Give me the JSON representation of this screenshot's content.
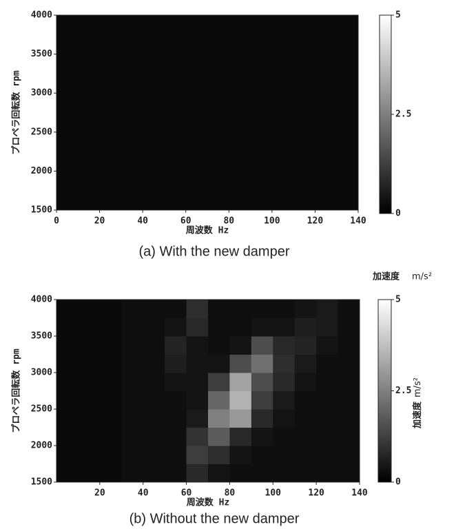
{
  "chart_data": [
    {
      "type": "heatmap",
      "xlabel": "周波数 Hz",
      "ylabel": "プロペラ回転数 rpm",
      "caption": "(a) With the new damper",
      "xlim": [
        0,
        140
      ],
      "xticks": [
        0,
        20,
        40,
        60,
        80,
        100,
        120,
        140
      ],
      "ylim": [
        1500,
        4000
      ],
      "yticks": [
        1500,
        2000,
        2500,
        3000,
        3500,
        4000
      ],
      "x_bins": [
        0,
        10,
        20,
        30,
        40,
        50,
        60,
        70,
        80,
        90,
        100,
        110,
        120,
        130,
        140
      ],
      "y_bins": [
        1500,
        1750,
        2000,
        2250,
        2500,
        2750,
        3000,
        3250,
        3500,
        3750,
        4000
      ],
      "z": [
        [
          0.2,
          0.2,
          0.2,
          0.2,
          0.2,
          0.2,
          0.2,
          0.2,
          0.2,
          0.2,
          0.2,
          0.2,
          0.2,
          0.2
        ],
        [
          0.2,
          0.2,
          0.2,
          0.2,
          0.2,
          0.2,
          0.2,
          0.2,
          0.2,
          0.2,
          0.2,
          0.2,
          0.2,
          0.2
        ],
        [
          0.2,
          0.2,
          0.2,
          0.2,
          0.2,
          0.2,
          0.2,
          0.2,
          0.2,
          0.2,
          0.2,
          0.2,
          0.2,
          0.2
        ],
        [
          0.2,
          0.2,
          0.2,
          0.2,
          0.2,
          0.2,
          0.2,
          0.2,
          0.2,
          0.2,
          0.2,
          0.2,
          0.2,
          0.2
        ],
        [
          0.2,
          0.2,
          0.2,
          0.2,
          0.2,
          0.2,
          0.2,
          0.2,
          0.2,
          0.2,
          0.2,
          0.2,
          0.2,
          0.2
        ],
        [
          0.2,
          0.2,
          0.2,
          0.2,
          0.2,
          0.2,
          0.2,
          0.2,
          0.2,
          0.2,
          0.2,
          0.2,
          0.2,
          0.2
        ],
        [
          0.2,
          0.2,
          0.2,
          0.2,
          0.2,
          0.2,
          0.2,
          0.2,
          0.2,
          0.2,
          0.2,
          0.2,
          0.2,
          0.2
        ],
        [
          0.2,
          0.2,
          0.2,
          0.2,
          0.2,
          0.2,
          0.2,
          0.2,
          0.2,
          0.2,
          0.2,
          0.2,
          0.2,
          0.2
        ],
        [
          0.2,
          0.2,
          0.2,
          0.2,
          0.2,
          0.2,
          0.2,
          0.2,
          0.2,
          0.2,
          0.2,
          0.2,
          0.2,
          0.2
        ],
        [
          0.2,
          0.2,
          0.2,
          0.2,
          0.2,
          0.2,
          0.2,
          0.2,
          0.2,
          0.2,
          0.2,
          0.2,
          0.2,
          0.2
        ]
      ],
      "colormap": [
        "#000000",
        "#ffffff"
      ],
      "zlim": [
        0,
        5
      ],
      "zticks": [
        0,
        2.5,
        5
      ]
    },
    {
      "type": "heatmap",
      "xlabel": "周波数 Hz",
      "ylabel": "プロペラ回転数 rpm",
      "caption": "(b) Without the new damper",
      "colorbar_title": "加速度",
      "colorbar_unit": "m/s²",
      "xlim": [
        0,
        140
      ],
      "xticks": [
        20,
        40,
        60,
        80,
        100,
        120,
        140
      ],
      "ylim": [
        1500,
        4000
      ],
      "yticks": [
        1500,
        2000,
        2500,
        3000,
        3500,
        4000
      ],
      "x_bins": [
        0,
        10,
        20,
        30,
        40,
        50,
        60,
        70,
        80,
        90,
        100,
        110,
        120,
        130,
        140
      ],
      "y_bins": [
        1500,
        1750,
        2000,
        2250,
        2500,
        2750,
        3000,
        3250,
        3500,
        3750,
        4000
      ],
      "z": [
        [
          0.2,
          0.2,
          0.2,
          0.3,
          0.3,
          0.3,
          0.8,
          0.4,
          0.3,
          0.3,
          0.3,
          0.3,
          0.3,
          0.3
        ],
        [
          0.2,
          0.2,
          0.2,
          0.3,
          0.3,
          0.3,
          1.2,
          0.9,
          0.4,
          0.3,
          0.3,
          0.3,
          0.3,
          0.3
        ],
        [
          0.2,
          0.2,
          0.2,
          0.3,
          0.3,
          0.3,
          1.0,
          1.8,
          0.8,
          0.4,
          0.3,
          0.3,
          0.3,
          0.3
        ],
        [
          0.2,
          0.2,
          0.2,
          0.3,
          0.3,
          0.3,
          0.5,
          2.5,
          3.0,
          0.8,
          0.4,
          0.3,
          0.3,
          0.3
        ],
        [
          0.2,
          0.2,
          0.2,
          0.3,
          0.3,
          0.3,
          0.4,
          2.0,
          3.5,
          1.2,
          0.5,
          0.3,
          0.3,
          0.3
        ],
        [
          0.2,
          0.2,
          0.2,
          0.3,
          0.3,
          0.4,
          0.4,
          1.2,
          3.2,
          1.5,
          0.8,
          0.4,
          0.3,
          0.3
        ],
        [
          0.2,
          0.2,
          0.2,
          0.3,
          0.3,
          0.6,
          0.4,
          0.4,
          1.5,
          2.2,
          0.9,
          0.5,
          0.3,
          0.3
        ],
        [
          0.2,
          0.2,
          0.2,
          0.3,
          0.3,
          0.7,
          0.4,
          0.3,
          0.4,
          1.5,
          0.8,
          0.7,
          0.4,
          0.3
        ],
        [
          0.2,
          0.2,
          0.2,
          0.3,
          0.3,
          0.4,
          0.8,
          0.3,
          0.3,
          0.4,
          0.4,
          0.6,
          0.5,
          0.3
        ],
        [
          0.2,
          0.2,
          0.2,
          0.3,
          0.3,
          0.3,
          0.9,
          0.3,
          0.3,
          0.3,
          0.3,
          0.4,
          0.5,
          0.3
        ]
      ],
      "colormap": [
        "#000000",
        "#ffffff"
      ],
      "zlim": [
        0,
        5
      ],
      "zticks": [
        0,
        2.5,
        5
      ]
    }
  ]
}
